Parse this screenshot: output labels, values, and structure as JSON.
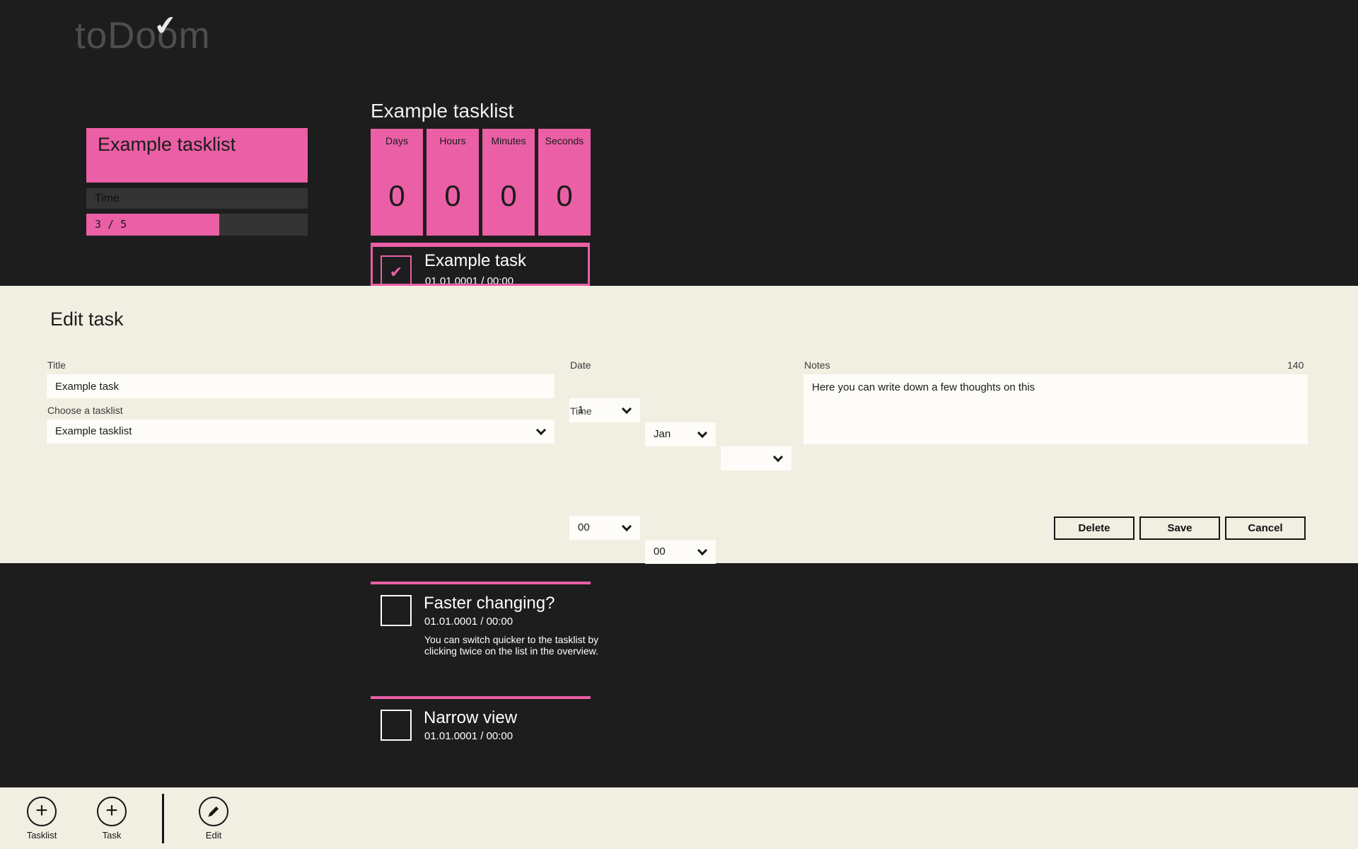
{
  "colors": {
    "accent_pink": "#ea5fa5",
    "background_dark": "#1d1d1d",
    "panel_cream": "#f1eee2"
  },
  "logo": {
    "text": "toDoom",
    "pre": "toDo",
    "checked_letter": "o",
    "post": "m",
    "check_icon": "✔"
  },
  "tasklist_tile": {
    "title": "Example tasklist",
    "time_label": "Time",
    "progress_text": "3 / 5",
    "progress_percent": 60
  },
  "countdown": {
    "heading": "Example tasklist",
    "units": [
      {
        "label": "Days",
        "value": "0"
      },
      {
        "label": "Hours",
        "value": "0"
      },
      {
        "label": "Minutes",
        "value": "0"
      },
      {
        "label": "Seconds",
        "value": "0"
      }
    ]
  },
  "selected_task": {
    "title": "Example task",
    "datetime": "01.01.0001 / 00:00",
    "check_icon": "✔"
  },
  "edit_panel": {
    "heading": "Edit task",
    "title_label": "Title",
    "title_value": "Example task",
    "tasklist_label": "Choose a tasklist",
    "tasklist_value": "Example tasklist",
    "date_label": "Date",
    "date_day": "1",
    "date_month": "Jan",
    "date_year": "",
    "time_label": "Time",
    "time_hour": "00",
    "time_minute": "00",
    "notes_label": "Notes",
    "notes_counter": "140",
    "notes_value": "Here you can write down a few thoughts on this",
    "buttons": {
      "delete": "Delete",
      "save": "Save",
      "cancel": "Cancel"
    }
  },
  "tasks": [
    {
      "title": "Faster changing?",
      "datetime": "01.01.0001 / 00:00",
      "description": "You can switch quicker to the tasklist by clicking twice on the list in the overview."
    },
    {
      "title": "Narrow view",
      "datetime": "01.01.0001 / 00:00",
      "description": ""
    }
  ],
  "app_bar": {
    "tasklist_label": "Tasklist",
    "task_label": "Task",
    "edit_label": "Edit",
    "plus_icon": "+",
    "pencil_icon": "pencil"
  }
}
